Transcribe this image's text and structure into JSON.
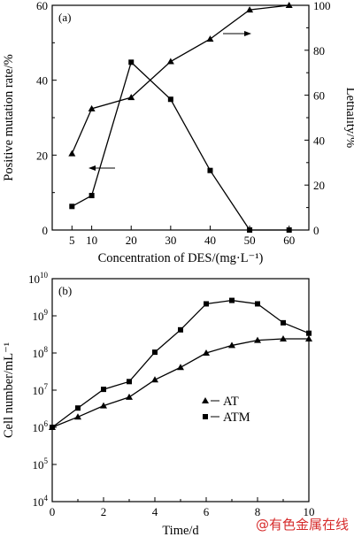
{
  "chart_data": [
    {
      "type": "line",
      "panel_label": "(a)",
      "xlabel": "Concentration of DES/(mg·L⁻¹)",
      "ylabel": "Positive mutation rate/%",
      "y2label": "Lethality/%",
      "x": [
        5,
        10,
        20,
        30,
        40,
        50,
        60
      ],
      "xlim": [
        0,
        65
      ],
      "ylim": [
        0,
        60
      ],
      "y2lim": [
        0,
        100
      ],
      "xticks": [
        "5",
        "10",
        "20",
        "30",
        "40",
        "50",
        "60"
      ],
      "yticks": [
        "0",
        "20",
        "40",
        "60"
      ],
      "y2ticks": [
        "0",
        "20",
        "40",
        "60",
        "80",
        "100"
      ],
      "series": [
        {
          "marker": "square",
          "axis": "left",
          "values": [
            6.3,
            9.2,
            44.8,
            34.9,
            15.9,
            0,
            0
          ]
        },
        {
          "marker": "triangle",
          "axis": "right",
          "values": [
            34,
            54,
            59,
            75,
            85,
            98,
            100
          ]
        }
      ],
      "grid": false
    },
    {
      "type": "line",
      "panel_label": "(b)",
      "xlabel": "Time/d",
      "ylabel": "Cell number/mL⁻¹",
      "yscale": "log",
      "x": [
        0,
        1,
        2,
        3,
        4,
        5,
        6,
        7,
        8,
        9,
        10
      ],
      "xlim": [
        0,
        10
      ],
      "ylim": [
        10000,
        10000000000
      ],
      "xticks": [
        "0",
        "2",
        "4",
        "6",
        "8",
        "10"
      ],
      "yticks": [
        {
          "base": "10",
          "exp": "4"
        },
        {
          "base": "10",
          "exp": "5"
        },
        {
          "base": "10",
          "exp": "6"
        },
        {
          "base": "10",
          "exp": "7"
        },
        {
          "base": "10",
          "exp": "8"
        },
        {
          "base": "10",
          "exp": "9"
        },
        {
          "base": "10",
          "exp": "10"
        }
      ],
      "series": [
        {
          "name": "AT",
          "marker": "triangle",
          "values": [
            1000000,
            1900000,
            3800000,
            6500000,
            19000000,
            41000000,
            100000000,
            160000000,
            220000000,
            240000000,
            240000000
          ]
        },
        {
          "name": "ATM",
          "marker": "square",
          "values": [
            1000000,
            3300000,
            10500000,
            17000000,
            105000000,
            420000000,
            2100000000,
            2600000000,
            2100000000,
            650000000,
            340000000
          ]
        }
      ],
      "legend": "center-left",
      "grid": false
    }
  ],
  "watermark": "@有色金属在线"
}
